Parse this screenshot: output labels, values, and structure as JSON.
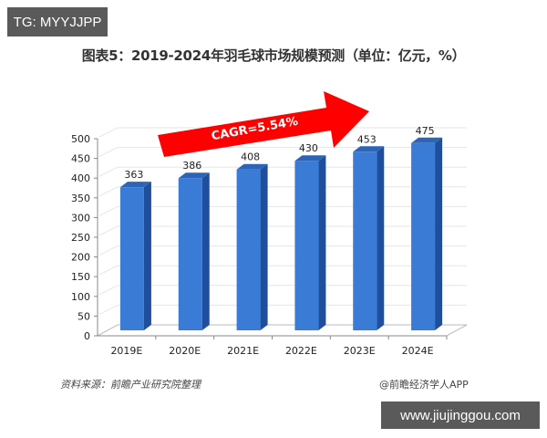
{
  "badges": {
    "top_left": "TG: MYYJJPP",
    "bottom_right": "www.jiujinggou.com"
  },
  "footer": {
    "source": "资料来源：前瞻产业研究院整理",
    "credit": "@前瞻经济学人APP"
  },
  "colors": {
    "bar_front": "#3a7bd5",
    "bar_side": "#1f4f9c",
    "bar_top": "#2c64b8",
    "arrow": "#ff0000",
    "axis": "#888888",
    "grid": "#e6e6e6"
  },
  "chart_data": {
    "type": "bar",
    "title": "图表5：2019-2024年羽毛球市场规模预测（单位：亿元，%）",
    "xlabel": "",
    "ylabel": "亿元",
    "categories": [
      "2019E",
      "2020E",
      "2021E",
      "2022E",
      "2023E",
      "2024E"
    ],
    "values": [
      363,
      386,
      408,
      430,
      453,
      475
    ],
    "ylim": [
      0,
      500
    ],
    "yticks": [
      0,
      50,
      100,
      150,
      200,
      250,
      300,
      350,
      400,
      450,
      500
    ],
    "grid": true,
    "legend": null,
    "style": "3d-column",
    "annotations": [
      {
        "type": "arrow",
        "text": "CAGR=5.54%",
        "direction": "up-right"
      }
    ]
  }
}
